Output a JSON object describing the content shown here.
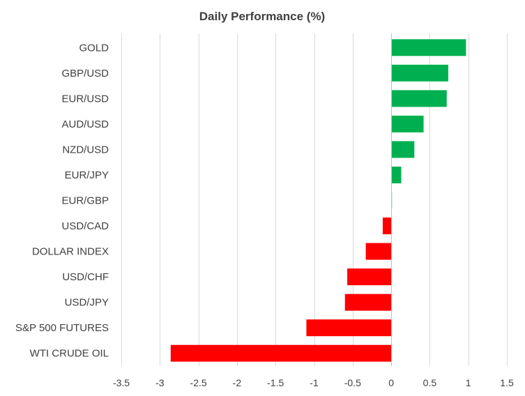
{
  "chart_data": {
    "type": "bar",
    "orientation": "horizontal",
    "title": "Daily Performance  (%)",
    "xlabel": "",
    "ylabel": "",
    "categories": [
      "GOLD",
      "GBP/USD",
      "EUR/USD",
      "AUD/USD",
      "NZD/USD",
      "EUR/JPY",
      "EUR/GBP",
      "USD/CAD",
      "DOLLAR INDEX",
      "USD/CHF",
      "USD/JPY",
      "S&P 500 FUTURES",
      "WTI CRUDE OIL"
    ],
    "values": [
      0.97,
      0.74,
      0.72,
      0.42,
      0.3,
      0.13,
      0.01,
      -0.11,
      -0.33,
      -0.57,
      -0.6,
      -1.1,
      -2.86
    ],
    "xlim": [
      -3.5,
      1.5
    ],
    "xticks": [
      -3.5,
      -3,
      -2.5,
      -2,
      -1.5,
      -1,
      -0.5,
      0,
      0.5,
      1,
      1.5
    ],
    "xtick_labels": [
      "-3.5",
      "-3",
      "-2.5",
      "-2",
      "-1.5",
      "-1",
      "-0.5",
      "0",
      "0.5",
      "1",
      "1.5"
    ],
    "grid": true,
    "legend": false,
    "colors": {
      "positive": "#00b050",
      "negative": "#ff0000",
      "text": "#404040",
      "grid": "#d9d9d9",
      "background": "#ffffff"
    }
  }
}
